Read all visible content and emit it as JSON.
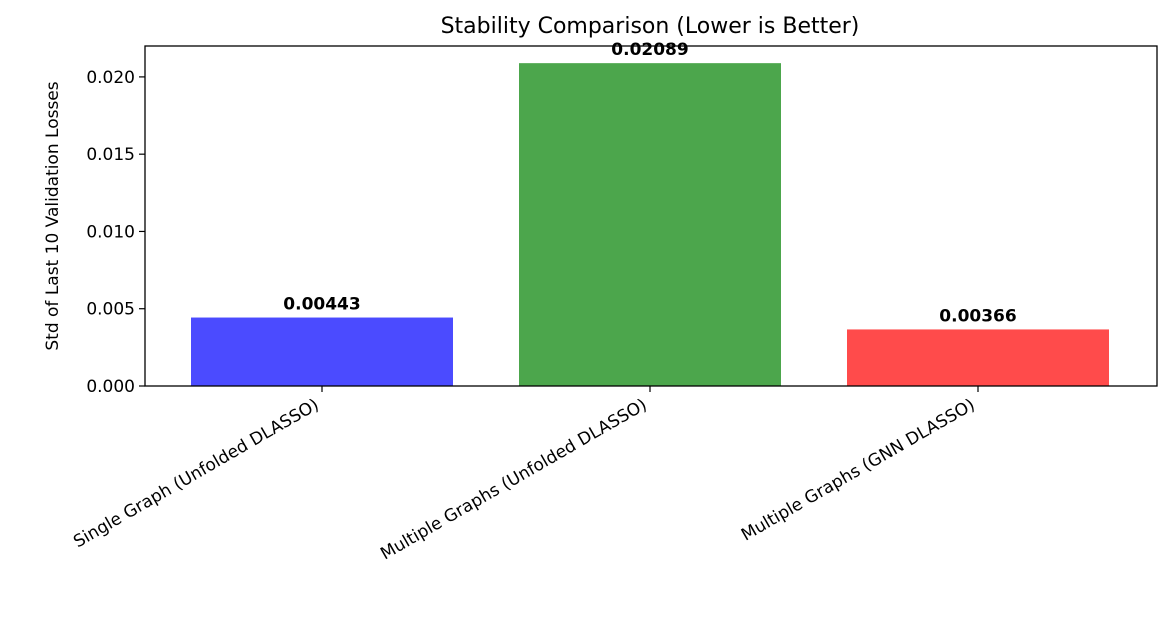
{
  "chart_data": {
    "type": "bar",
    "title": "Stability Comparison (Lower is Better)",
    "xlabel": "",
    "ylabel": "Std of Last 10 Validation Losses",
    "categories": [
      "Single Graph (Unfolded DLASSO)",
      "Multiple Graphs (Unfolded DLASSO)",
      "Multiple Graphs (GNN DLASSO)"
    ],
    "values": [
      0.00443,
      0.02089,
      0.00366
    ],
    "value_labels": [
      "0.00443",
      "0.02089",
      "0.00366"
    ],
    "colors": [
      "#4b4bff",
      "#4ca64c",
      "#ff4b4b"
    ],
    "ylim": [
      0,
      0.022
    ],
    "yticks": [
      0,
      0.005,
      0.01,
      0.015,
      0.02
    ],
    "ytick_labels": [
      "0.000",
      "0.005",
      "0.010",
      "0.015",
      "0.020"
    ],
    "grid": false,
    "legend": "none"
  }
}
